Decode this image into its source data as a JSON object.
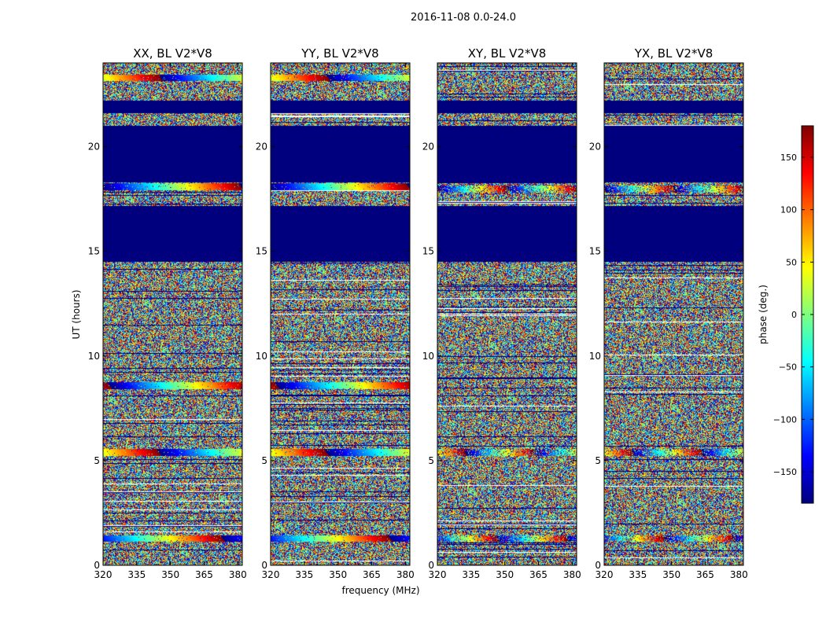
{
  "chart_data": {
    "type": "heatmap",
    "title": "2016-11-08 0.0-24.0",
    "xlabel": "frequency (MHz)",
    "ylabel": "UT (hours)",
    "xlim": [
      320,
      382
    ],
    "ylim": [
      0,
      24
    ],
    "xticks": [
      320,
      335,
      350,
      365,
      380
    ],
    "yticks": [
      0,
      5,
      10,
      15,
      20
    ],
    "colorbar": {
      "label": "phase (deg.)",
      "range": [
        -180,
        180
      ],
      "ticks": [
        -150,
        -100,
        -50,
        0,
        50,
        100,
        150
      ],
      "tick_labels": [
        "−150",
        "−100",
        "−50",
        "0",
        "50",
        "100",
        "150"
      ],
      "colormap": [
        "#00007f",
        "#0000ff",
        "#007fff",
        "#00ffff",
        "#7fff7f",
        "#ffff00",
        "#ff7f00",
        "#ff0000",
        "#7f0000"
      ]
    },
    "panels": [
      {
        "title": "XX, BL V2*V8",
        "fringe_bands_ut": [
          1.3,
          5.4,
          8.6,
          18.1,
          23.3
        ],
        "pattern": "strong"
      },
      {
        "title": "YY, BL V2*V8",
        "fringe_bands_ut": [
          1.3,
          5.4,
          8.6,
          18.1,
          23.3
        ],
        "pattern": "strong"
      },
      {
        "title": "XY, BL V2*V8",
        "fringe_bands_ut": [
          1.3,
          5.4,
          18.0
        ],
        "pattern": "weak"
      },
      {
        "title": "YX, BL V2*V8",
        "fringe_bands_ut": [
          1.3,
          5.4,
          18.0
        ],
        "pattern": "weak"
      }
    ],
    "flagged_ut_ranges": [
      [
        14.5,
        17.2
      ],
      [
        18.3,
        21.0
      ],
      [
        21.6,
        22.2
      ]
    ],
    "flag_value_deg": -180
  }
}
